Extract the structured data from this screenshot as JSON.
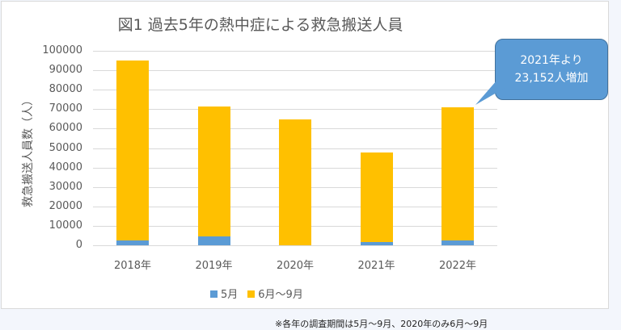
{
  "chart_data": {
    "type": "bar",
    "stacked": true,
    "title": "図1 過去5年の熱中症による救急搬送人員",
    "xlabel": "",
    "ylabel": "救急搬送人員数（人）",
    "ylim": [
      0,
      100000
    ],
    "yticks": [
      "100000",
      "90000",
      "80000",
      "70000",
      "60000",
      "50000",
      "40000",
      "30000",
      "20000",
      "10000",
      "0"
    ],
    "categories": [
      "2018年",
      "2019年",
      "2020年",
      "2021年",
      "2022年"
    ],
    "series": [
      {
        "name": "5月",
        "color": "#5b9bd5",
        "values": [
          2310,
          4448,
          0,
          1626,
          2668
        ]
      },
      {
        "name": "6月～9月",
        "color": "#ffc000",
        "values": [
          92827,
          66869,
          64869,
          46251,
          68361
        ]
      }
    ],
    "totals": [
      95137,
      71317,
      64869,
      47877,
      71029
    ],
    "legend_position": "bottom",
    "annotations": [
      {
        "text_line1": "2021年より",
        "text_line2": "23,152人増加",
        "target": "2022年"
      }
    ]
  },
  "footnote": "※各年の調査期間は5月～9月、2020年のみ6月～9月"
}
